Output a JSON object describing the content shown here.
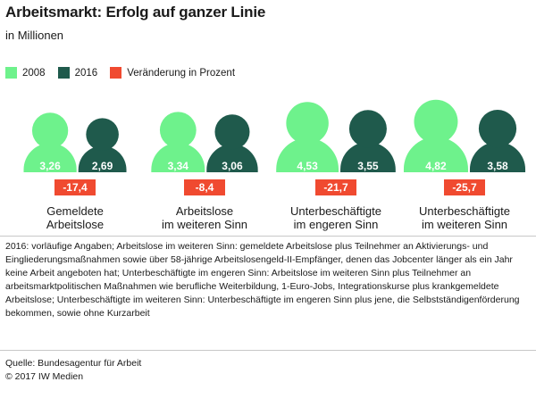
{
  "header": {
    "title": "Arbeitsmarkt: Erfolg auf ganzer Linie",
    "subtitle": "in Millionen"
  },
  "legend": [
    {
      "label": "2008",
      "color": "#6ef28c"
    },
    {
      "label": "2016",
      "color": "#1f5a4c"
    },
    {
      "label": "Veränderung in Prozent",
      "color": "#f04a30"
    }
  ],
  "chart_data": {
    "type": "bar",
    "title": "Arbeitsmarkt: Erfolg auf ganzer Linie",
    "ylabel": "in Millionen",
    "categories": [
      [
        "Gemeldete",
        "Arbeitslose"
      ],
      [
        "Arbeitslose",
        "im weiteren Sinn"
      ],
      [
        "Unterbeschäftigte",
        "im engeren Sinn"
      ],
      [
        "Unterbeschäftigte",
        "im weiteren Sinn"
      ]
    ],
    "series": [
      {
        "name": "2008",
        "values": [
          3.26,
          3.34,
          4.53,
          4.82
        ],
        "labels": [
          "3,26",
          "3,34",
          "4,53",
          "4,82"
        ],
        "color": "#6ef28c"
      },
      {
        "name": "2016",
        "values": [
          2.69,
          3.06,
          3.55,
          3.58
        ],
        "labels": [
          "2,69",
          "3,06",
          "3,55",
          "3,58"
        ],
        "color": "#1f5a4c"
      }
    ],
    "change_percent": [
      -17.4,
      -8.4,
      -21.7,
      -25.7
    ],
    "change_labels": [
      "-17,4",
      "-8,4",
      "-21,7",
      "-25,7"
    ],
    "change_color": "#f04a30"
  },
  "note": "2016: vorläufige Angaben; Arbeitslose im weiteren Sinn: gemeldete Arbeitslose plus Teilnehmer an Aktivierungs- und Eingliederungsmaßnahmen sowie über 58-jährige Arbeitslosengeld-II-Empfänger, denen das Jobcenter länger als ein Jahr keine Arbeit angeboten hat; Unterbeschäftigte im engeren Sinn: Arbeitslose im weiteren Sinn plus Teilnehmer an arbeitsmarktpolitischen Maßnahmen wie berufliche Weiterbildung, 1-Euro-Jobs, Integrationskurse plus krankgemeldete Arbeitslose; Unterbeschäftigte im weiteren Sinn: Unterbeschäftigte im engeren Sinn plus jene, die Selbstständigenförderung bekommen, sowie ohne Kurzarbeit",
  "footer": {
    "source": "Quelle: Bundesagentur für Arbeit",
    "copyright": "© 2017 IW Medien"
  }
}
